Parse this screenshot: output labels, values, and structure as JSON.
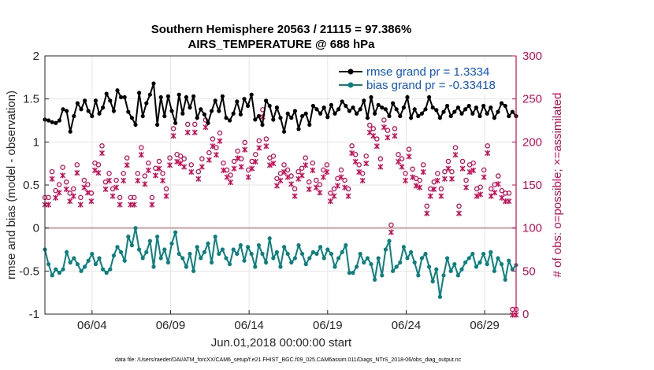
{
  "chart_data": {
    "type": "line",
    "title": "Southern Hemisphere 20563 / 21115 = 97.386%",
    "subtitle": "AIRS_TEMPERATURE @ 688 hPa",
    "xlabel": "Jun.01,2018 00:00:00 start",
    "ylabel": "rmse and bias (model - observation)",
    "ylabel_right": "# of obs: o=possible; ×=assimilated",
    "footnote": "data file: /Users/raeder/DAI/ATM_forcXX/CAM6_setup/f.e21.FHIST_BGC.f09_025.CAM6assim.011/Diags_NTrS_2018-06/obs_diag_output.nc",
    "x_range_days": [
      1,
      31
    ],
    "x_ticks": [
      {
        "day": 4,
        "label": "06/04"
      },
      {
        "day": 9,
        "label": "06/09"
      },
      {
        "day": 14,
        "label": "06/14"
      },
      {
        "day": 19,
        "label": "06/19"
      },
      {
        "day": 24,
        "label": "06/24"
      },
      {
        "day": 29,
        "label": "06/29"
      }
    ],
    "ylim": [
      -1,
      2
    ],
    "y_ticks": [
      -1,
      -0.5,
      0,
      0.5,
      1,
      1.5,
      2
    ],
    "y_tick_labels": [
      "-1",
      "-0.5",
      "0",
      "0.5",
      "1",
      "1.5",
      "2"
    ],
    "ylim_right": [
      0,
      300
    ],
    "y_ticks_right": [
      0,
      50,
      100,
      150,
      200,
      250,
      300
    ],
    "y_tick_labels_right": [
      "0",
      "50",
      "100",
      "150",
      "200",
      "250",
      "300"
    ],
    "grid": true,
    "legend_position": "top-right",
    "colors": {
      "rmse": "#000000",
      "bias": "#0a8080",
      "obs": "#cc0a55",
      "legend_text": "#0b57d0",
      "zero_line": "#c8a0a0"
    },
    "series": [
      {
        "name": "rmse grand pr = 1.3334",
        "axis": "left",
        "marker": "dot",
        "values": [
          1.26,
          1.25,
          1.23,
          1.22,
          1.25,
          1.38,
          1.36,
          1.12,
          1.3,
          1.45,
          1.38,
          1.48,
          1.36,
          1.3,
          1.48,
          1.33,
          1.4,
          1.56,
          1.48,
          1.36,
          1.6,
          1.52,
          1.52,
          1.35,
          1.28,
          1.2,
          1.57,
          1.3,
          1.45,
          1.55,
          1.68,
          1.2,
          1.52,
          1.3,
          1.53,
          1.36,
          1.22,
          1.55,
          1.33,
          1.52,
          1.4,
          1.53,
          1.28,
          1.38,
          1.32,
          1.22,
          1.36,
          1.48,
          1.36,
          1.53,
          1.28,
          1.25,
          1.33,
          1.47,
          1.32,
          1.5,
          1.42,
          1.55,
          1.26,
          1.3,
          1.2,
          1.48,
          1.42,
          1.26,
          1.4,
          1.28,
          1.12,
          1.33,
          1.28,
          1.36,
          1.15,
          1.3,
          1.33,
          1.2,
          1.42,
          1.38,
          1.33,
          1.4,
          1.29,
          1.43,
          1.33,
          1.38,
          1.47,
          1.42,
          1.36,
          1.4,
          1.33,
          1.38,
          1.48,
          1.28,
          1.52,
          1.33,
          1.43,
          1.4,
          1.38,
          1.3,
          1.45,
          1.38,
          1.3,
          1.4,
          1.52,
          1.28,
          1.38,
          1.3,
          1.33,
          1.38,
          1.52,
          1.4,
          1.37,
          1.28,
          1.35,
          1.42,
          1.3,
          1.35,
          1.4,
          1.33,
          1.38,
          1.42,
          1.33,
          1.4,
          1.3,
          1.42,
          1.33,
          1.4,
          1.28,
          1.35,
          1.45,
          1.42,
          1.3,
          1.35,
          1.3
        ]
      },
      {
        "name": "bias grand pr = -0.33418",
        "axis": "left",
        "marker": "dot",
        "values": [
          -0.25,
          -0.42,
          -0.55,
          -0.48,
          -0.52,
          -0.48,
          -0.28,
          -0.4,
          -0.35,
          -0.42,
          -0.5,
          -0.45,
          -0.38,
          -0.3,
          -0.42,
          -0.35,
          -0.48,
          -0.52,
          -0.48,
          -0.32,
          -0.22,
          -0.28,
          -0.38,
          -0.1,
          -0.2,
          0.0,
          -0.25,
          -0.35,
          -0.28,
          -0.15,
          -0.45,
          -0.1,
          -0.35,
          -0.25,
          -0.4,
          -0.18,
          -0.05,
          -0.3,
          -0.35,
          -0.45,
          -0.3,
          -0.5,
          -0.22,
          -0.35,
          -0.28,
          -0.18,
          -0.4,
          -0.1,
          -0.3,
          -0.25,
          -0.35,
          -0.42,
          -0.25,
          -0.3,
          -0.2,
          -0.38,
          -0.22,
          -0.3,
          -0.45,
          -0.2,
          -0.3,
          -0.4,
          -0.12,
          -0.35,
          -0.28,
          -0.45,
          -0.22,
          -0.3,
          -0.4,
          -0.35,
          -0.2,
          -0.3,
          -0.42,
          -0.35,
          -0.28,
          -0.3,
          -0.22,
          -0.35,
          -0.25,
          -0.3,
          -0.45,
          -0.35,
          -0.28,
          -0.2,
          -0.52,
          -0.52,
          -0.45,
          -0.3,
          -0.4,
          -0.35,
          -0.42,
          -0.6,
          -0.35,
          -0.55,
          -0.25,
          -0.15,
          -0.5,
          -0.45,
          -0.4,
          -0.22,
          -0.35,
          -0.28,
          -0.4,
          -0.55,
          -0.35,
          -0.3,
          -0.45,
          -0.62,
          -0.48,
          -0.8,
          -0.55,
          -0.35,
          -0.5,
          -0.42,
          -0.55,
          -0.48,
          -0.4,
          -0.35,
          -0.3,
          -0.45,
          -0.4,
          -0.3,
          -0.42,
          -0.28,
          -0.5,
          -0.35,
          -0.42,
          -0.6,
          -0.38,
          -0.48,
          -0.43
        ]
      }
    ],
    "obs_possible": [
      130,
      130,
      160,
      138,
      145,
      165,
      148,
      135,
      140,
      168,
      130,
      150,
      145,
      135,
      170,
      168,
      190,
      148,
      158,
      140,
      150,
      130,
      158,
      176,
      130,
      130,
      158,
      188,
      155,
      170,
      130,
      164,
      172,
      158,
      140,
      176,
      210,
      180,
      178,
      175,
      215,
      168,
      215,
      160,
      175,
      220,
      182,
      198,
      188,
      205,
      170,
      162,
      156,
      172,
      184,
      175,
      194,
      162,
      172,
      180,
      196,
      232,
      198,
      176,
      178,
      152,
      158,
      168,
      162,
      155,
      140,
      160,
      164,
      176,
      148,
      170,
      150,
      145,
      162,
      168,
      135,
      140,
      152,
      162,
      150,
      140,
      190,
      180,
      168,
      158,
      178,
      214,
      210,
      198,
      175,
      220,
      208,
      98,
      210,
      180,
      175,
      158,
      186,
      163,
      152,
      150,
      168,
      120,
      140,
      148,
      158,
      140,
      160,
      172,
      160,
      188,
      120,
      172,
      150,
      168,
      170,
      140,
      142,
      162,
      190,
      140,
      145,
      155,
      138,
      135,
      135,
      0,
      0
    ],
    "obs_assimilated": [
      128,
      128,
      158,
      136,
      142,
      162,
      146,
      132,
      138,
      165,
      128,
      148,
      142,
      132,
      168,
      165,
      188,
      146,
      156,
      138,
      148,
      128,
      156,
      174,
      128,
      128,
      156,
      186,
      152,
      168,
      128,
      162,
      170,
      156,
      138,
      174,
      208,
      178,
      176,
      172,
      212,
      166,
      212,
      158,
      172,
      218,
      180,
      196,
      186,
      202,
      168,
      160,
      154,
      170,
      182,
      172,
      192,
      160,
      170,
      178,
      194,
      230,
      196,
      174,
      176,
      150,
      156,
      166,
      160,
      152,
      138,
      158,
      162,
      174,
      146,
      168,
      148,
      142,
      160,
      166,
      132,
      138,
      150,
      160,
      148,
      138,
      188,
      178,
      166,
      156,
      176,
      212,
      208,
      196,
      172,
      218,
      206,
      96,
      208,
      178,
      172,
      156,
      184,
      160,
      150,
      148,
      166,
      118,
      138,
      146,
      156,
      138,
      158,
      170,
      158,
      186,
      118,
      170,
      148,
      166,
      168,
      138,
      140,
      160,
      188,
      138,
      142,
      152,
      136,
      132,
      132,
      0,
      0
    ]
  }
}
